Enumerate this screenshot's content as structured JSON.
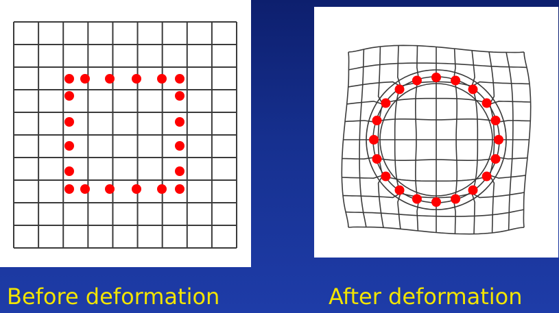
{
  "captions": {
    "before": "Before deformation",
    "after": "After deformation"
  },
  "colors": {
    "background": "#16308f",
    "caption": "#f2e400",
    "grid_line": "#333333",
    "marker": "#ff0000"
  },
  "diagram": {
    "before": {
      "grid_columns": 9,
      "grid_rows": 10,
      "marker_count": 20,
      "marker_shape": "square"
    },
    "after": {
      "marker_count": 20,
      "marker_shape": "circle"
    }
  }
}
